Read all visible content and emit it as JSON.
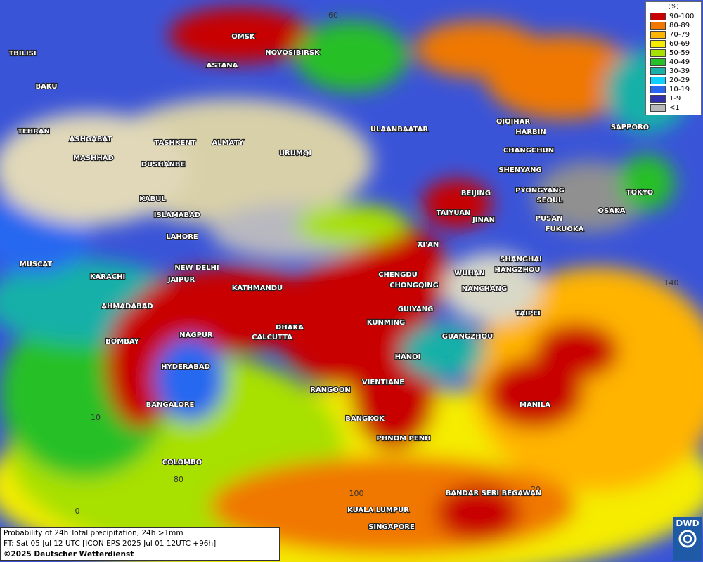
{
  "map": {
    "cities": [
      "OMSK",
      "NOVOSIBIRSK",
      "ASTANA",
      "TBILISI",
      "BAKU",
      "TEHRAN",
      "ASHGABAT",
      "MASHHAD",
      "TASHKENT",
      "ALMATY",
      "URUMQI",
      "DUSHANBE",
      "KABUL",
      "ISLAMABAD",
      "LAHORE",
      "NEW DELHI",
      "MUSCAT",
      "KARACHI",
      "JAIPUR",
      "KATHMANDU",
      "AHMADABAD",
      "DHAKA",
      "CALCUTTA",
      "NAGPUR",
      "BOMBAY",
      "HYDERABAD",
      "BANGALORE",
      "COLOMBO",
      "RANGOON",
      "VIENTIANE",
      "HANOI",
      "BANGKOK",
      "PHNOM PENH",
      "KUALA LUMPUR",
      "SINGAPORE",
      "BANDAR SERI BEGAWAN",
      "MANILA",
      "GUANGZHOU",
      "KUNMING",
      "GUIYANG",
      "CHONGQING",
      "CHENGDU",
      "WUHAN",
      "NANCHANG",
      "HANGZHOU",
      "SHANGHAI",
      "TAIPEI",
      "XI'AN",
      "JINAN",
      "TAIYUAN",
      "BEIJING",
      "SHENYANG",
      "CHANGCHUN",
      "HARBIN",
      "QIQIHAR",
      "ULAANBAATAR",
      "PYONGYANG",
      "SEOUL",
      "PUSAN",
      "FUKUOKA",
      "OSAKA",
      "TOKYO",
      "SAPPORO"
    ],
    "grid_labels": [
      60,
      140,
      10,
      80,
      0,
      100,
      20
    ]
  },
  "legend": {
    "title": "(%)",
    "entries": [
      {
        "label": "90-100",
        "color": "#c80000"
      },
      {
        "label": "80-89",
        "color": "#f07800"
      },
      {
        "label": "70-79",
        "color": "#ffb400"
      },
      {
        "label": "60-69",
        "color": "#f5ec00"
      },
      {
        "label": "50-59",
        "color": "#a8e000"
      },
      {
        "label": "40-49",
        "color": "#28c028"
      },
      {
        "label": "30-39",
        "color": "#18b0a8"
      },
      {
        "label": "20-29",
        "color": "#10d0ff"
      },
      {
        "label": "10-19",
        "color": "#2868f0"
      },
      {
        "label": "1-9",
        "color": "#3030b0"
      },
      {
        "label": "<1",
        "color": "#b8b8b8"
      }
    ]
  },
  "footer": {
    "lines": [
      "Probability of 24h Total precipitation, 24h >1mm",
      "FT: Sat 05 Jul 12 UTC [ICON EPS 2025 Jul 01 12UTC +96h]",
      "©2025 Deutscher Wetterdienst"
    ]
  },
  "logo": "DWD"
}
